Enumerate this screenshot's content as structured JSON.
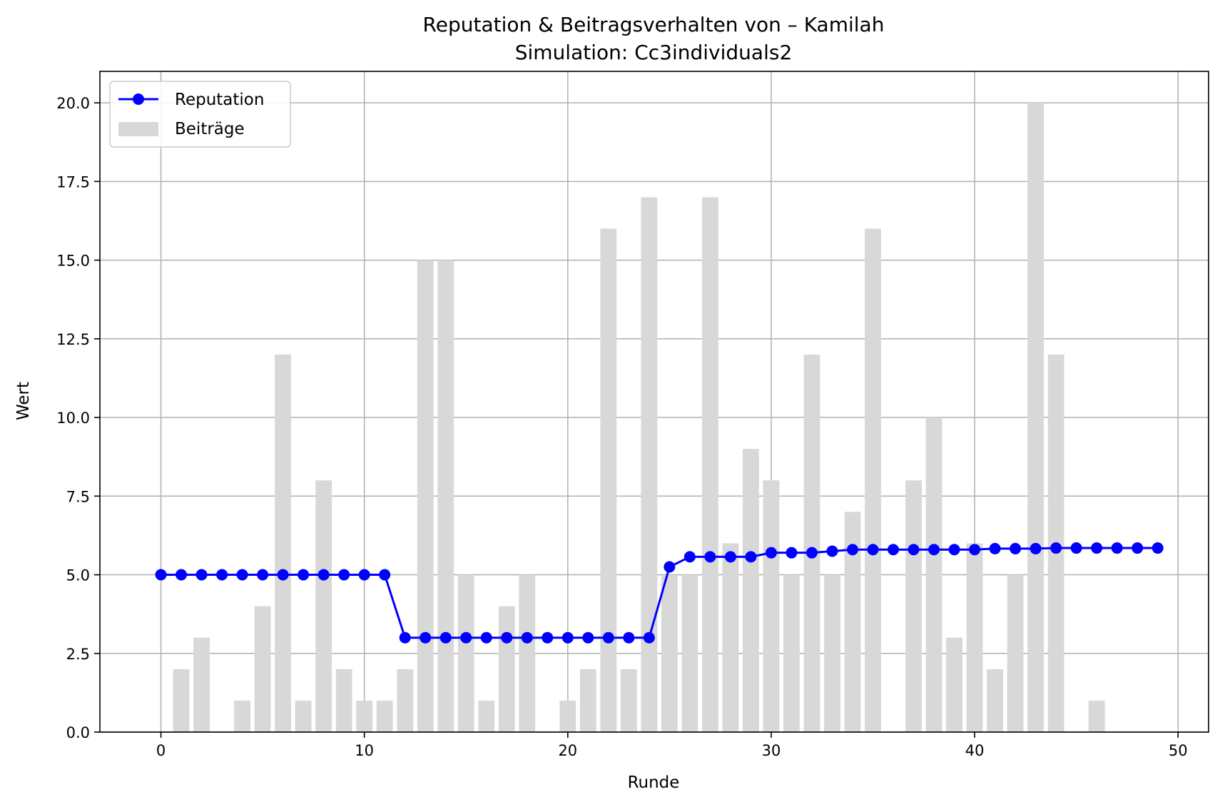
{
  "chart_data": {
    "type": "bar",
    "title": "Reputation & Beitragsverhalten von – Kamilah",
    "subtitle": "Simulation: Cc3individuals2",
    "xlabel": "Runde",
    "ylabel": "Wert",
    "xlim": [
      -3,
      51.5
    ],
    "ylim": [
      0,
      21
    ],
    "xticks": [
      0,
      10,
      20,
      30,
      40,
      50
    ],
    "yticks": [
      0.0,
      2.5,
      5.0,
      7.5,
      10.0,
      12.5,
      15.0,
      17.5,
      20.0
    ],
    "grid": true,
    "legend_position": "top-left",
    "x": [
      0,
      1,
      2,
      3,
      4,
      5,
      6,
      7,
      8,
      9,
      10,
      11,
      12,
      13,
      14,
      15,
      16,
      17,
      18,
      19,
      20,
      21,
      22,
      23,
      24,
      25,
      26,
      27,
      28,
      29,
      30,
      31,
      32,
      33,
      34,
      35,
      36,
      37,
      38,
      39,
      40,
      41,
      42,
      43,
      44,
      45,
      46,
      47,
      48,
      49
    ],
    "series": [
      {
        "name": "Beiträge",
        "kind": "bar",
        "color": "#d8d8d8",
        "values": [
          0,
          2,
          3,
          0,
          1,
          4,
          12,
          1,
          8,
          2,
          1,
          1,
          2,
          15,
          15,
          5,
          1,
          4,
          5,
          0,
          1,
          2,
          16,
          2,
          17,
          5,
          5,
          17,
          6,
          9,
          8,
          5,
          12,
          5,
          7,
          16,
          0,
          8,
          10,
          3,
          6,
          2,
          5,
          20,
          12,
          0,
          1,
          0,
          0,
          0
        ]
      },
      {
        "name": "Reputation",
        "kind": "line",
        "color": "#0000ff",
        "values": [
          5.0,
          5.0,
          5.0,
          5.0,
          5.0,
          5.0,
          5.0,
          5.0,
          5.0,
          5.0,
          5.0,
          5.0,
          3.0,
          3.0,
          3.0,
          3.0,
          3.0,
          3.0,
          3.0,
          3.0,
          3.0,
          3.0,
          3.0,
          3.0,
          3.0,
          5.25,
          5.57,
          5.57,
          5.57,
          5.57,
          5.7,
          5.7,
          5.7,
          5.75,
          5.8,
          5.8,
          5.8,
          5.8,
          5.8,
          5.8,
          5.8,
          5.83,
          5.83,
          5.83,
          5.85,
          5.85,
          5.85,
          5.85,
          5.85,
          5.85
        ]
      }
    ]
  }
}
